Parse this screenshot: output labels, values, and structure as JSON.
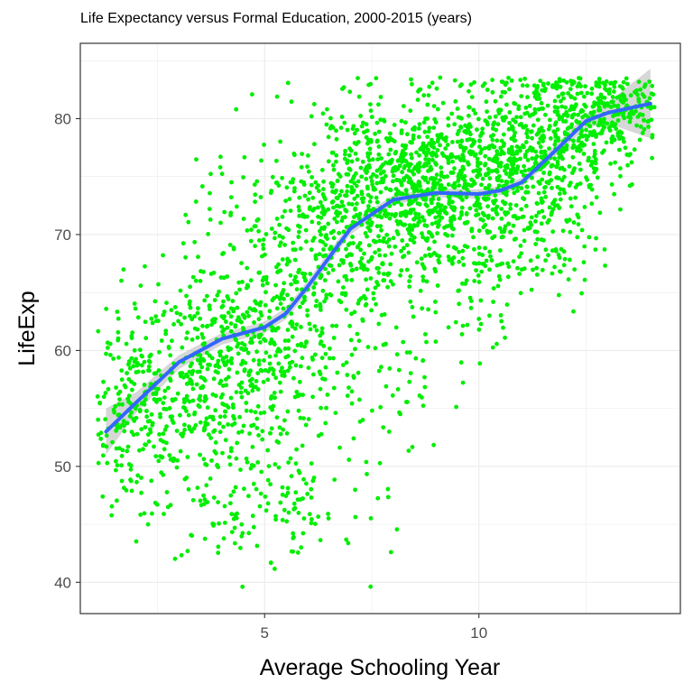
{
  "chart_data": {
    "type": "scatter",
    "title": "Life Expectancy versus Formal Education, 2000-2015 (years)",
    "xlabel": "Average Schooling Year",
    "ylabel": "LifeExp",
    "xlim": [
      0.7,
      14.7
    ],
    "ylim": [
      37.3,
      86.5
    ],
    "xticks": [
      5,
      10
    ],
    "yticks": [
      40,
      50,
      60,
      70,
      80
    ],
    "x_tick_labels": [
      "5",
      "10"
    ],
    "y_tick_labels": [
      "40",
      "50",
      "60",
      "70",
      "80"
    ],
    "grid": true,
    "colors": {
      "points": "#00ee00",
      "smooth": "#3366ff",
      "ribbon": "#bdbdbd",
      "grid": "#ebebeb",
      "panel_border": "#333333"
    },
    "point_clusters": [
      {
        "x": 2.0,
        "y": 55,
        "sx": 0.55,
        "sy": 4,
        "n": 220
      },
      {
        "x": 3.5,
        "y": 58,
        "sx": 0.7,
        "sy": 5,
        "n": 260
      },
      {
        "x": 4.5,
        "y": 60,
        "sx": 0.8,
        "sy": 7,
        "n": 260
      },
      {
        "x": 5.5,
        "y": 63,
        "sx": 0.8,
        "sy": 8,
        "n": 240
      },
      {
        "x": 6.5,
        "y": 68,
        "sx": 0.8,
        "sy": 6,
        "n": 240
      },
      {
        "x": 7.5,
        "y": 73,
        "sx": 0.8,
        "sy": 4,
        "n": 280
      },
      {
        "x": 8.5,
        "y": 74,
        "sx": 0.8,
        "sy": 4,
        "n": 300
      },
      {
        "x": 9.5,
        "y": 75,
        "sx": 0.8,
        "sy": 4,
        "n": 300
      },
      {
        "x": 10.5,
        "y": 75,
        "sx": 0.8,
        "sy": 4,
        "n": 280
      },
      {
        "x": 11.5,
        "y": 77,
        "sx": 0.8,
        "sy": 4,
        "n": 280
      },
      {
        "x": 12.5,
        "y": 80,
        "sx": 0.7,
        "sy": 2.5,
        "n": 260
      },
      {
        "x": 13.5,
        "y": 81.5,
        "sx": 0.4,
        "sy": 1.5,
        "n": 80
      },
      {
        "x": 4.2,
        "y": 45,
        "sx": 0.9,
        "sy": 2,
        "n": 50
      },
      {
        "x": 6.0,
        "y": 48,
        "sx": 1.0,
        "sy": 3,
        "n": 60
      },
      {
        "x": 8.2,
        "y": 57,
        "sx": 0.8,
        "sy": 4,
        "n": 50
      },
      {
        "x": 10.0,
        "y": 65,
        "sx": 0.4,
        "sy": 3,
        "n": 40
      },
      {
        "x": 11.7,
        "y": 68,
        "sx": 0.6,
        "sy": 2,
        "n": 40
      }
    ],
    "smooth_line": {
      "x": [
        1.3,
        2.0,
        3.0,
        4.0,
        5.0,
        5.5,
        6.0,
        7.0,
        8.0,
        9.0,
        10.0,
        10.5,
        11.0,
        12.0,
        12.5,
        13.0,
        14.0
      ],
      "y": [
        53.0,
        55.5,
        59.0,
        61.0,
        62.0,
        63.2,
        65.5,
        70.5,
        73.0,
        73.6,
        73.5,
        73.8,
        74.5,
        78.0,
        79.8,
        80.5,
        81.3
      ],
      "se": [
        2.0,
        0.9,
        0.6,
        0.5,
        0.5,
        0.5,
        0.5,
        0.5,
        0.4,
        0.4,
        0.4,
        0.4,
        0.4,
        0.5,
        0.6,
        0.9,
        3.0
      ]
    }
  }
}
